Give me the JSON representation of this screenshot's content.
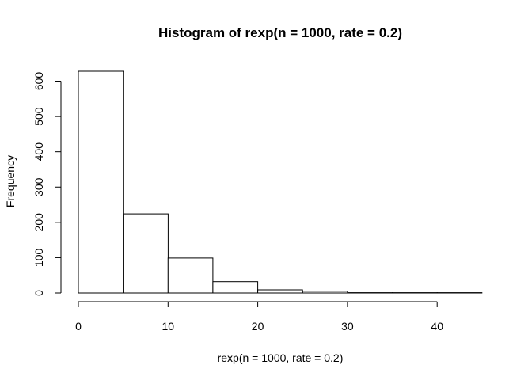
{
  "chart_data": {
    "type": "bar",
    "title": "Histogram of rexp(n = 1000, rate = 0.2)",
    "xlabel": "rexp(n = 1000, rate = 0.2)",
    "ylabel": "Frequency",
    "bins": [
      {
        "x0": 0,
        "x1": 5,
        "count": 628
      },
      {
        "x0": 5,
        "x1": 10,
        "count": 224
      },
      {
        "x0": 10,
        "x1": 15,
        "count": 99
      },
      {
        "x0": 15,
        "x1": 20,
        "count": 32
      },
      {
        "x0": 20,
        "x1": 25,
        "count": 9
      },
      {
        "x0": 25,
        "x1": 30,
        "count": 5
      },
      {
        "x0": 30,
        "x1": 35,
        "count": 1
      },
      {
        "x0": 35,
        "x1": 40,
        "count": 1
      },
      {
        "x0": 40,
        "x1": 45,
        "count": 1
      }
    ],
    "xlim": [
      0,
      45
    ],
    "ylim": [
      0,
      628
    ],
    "xticks": [
      0,
      10,
      20,
      30,
      40
    ],
    "yticks": [
      0,
      100,
      200,
      300,
      400,
      500,
      600
    ],
    "grid": false,
    "colors": {
      "bar_fill": "#ffffff",
      "bar_stroke": "#000000"
    }
  }
}
